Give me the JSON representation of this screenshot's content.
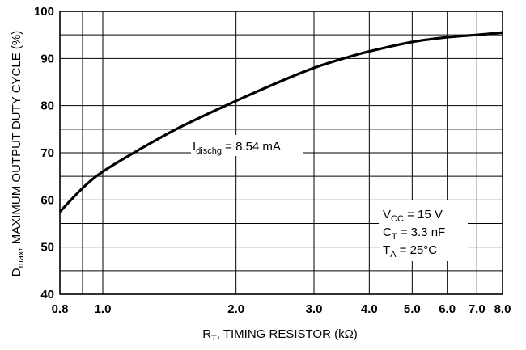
{
  "chart_data": {
    "type": "line",
    "x_scale": "log",
    "x_ticks": [
      {
        "value": 0.8,
        "label": "0.8"
      },
      {
        "value": 1.0,
        "label": "1.0"
      },
      {
        "value": 2.0,
        "label": "2.0"
      },
      {
        "value": 3.0,
        "label": "3.0"
      },
      {
        "value": 4.0,
        "label": "4.0"
      },
      {
        "value": 5.0,
        "label": "5.0"
      },
      {
        "value": 6.0,
        "label": "6.0"
      },
      {
        "value": 7.0,
        "label": "7.0"
      },
      {
        "value": 8.0,
        "label": "8.0"
      }
    ],
    "x_minor_grid": [
      0.9
    ],
    "y_ticks": [
      {
        "value": 40,
        "label": "40"
      },
      {
        "value": 50,
        "label": "50"
      },
      {
        "value": 60,
        "label": "60"
      },
      {
        "value": 70,
        "label": "70"
      },
      {
        "value": 80,
        "label": "80"
      },
      {
        "value": 90,
        "label": "90"
      },
      {
        "value": 100,
        "label": "100"
      }
    ],
    "y_minor_grid": [
      45,
      55,
      65,
      75,
      85,
      95
    ],
    "xlim": [
      0.8,
      8.0
    ],
    "ylim": [
      40,
      100
    ],
    "grid": true,
    "xlabel": {
      "main": "R",
      "sub": "T",
      "rest": ", TIMING RESISTOR (kΩ)"
    },
    "ylabel": {
      "main": "D",
      "sub": "max",
      "rest": ", MAXIMUM OUTPUT DUTY CYCLE (%)"
    },
    "series": [
      {
        "x": [
          0.8,
          0.9,
          1.0,
          1.2,
          1.5,
          2.0,
          2.5,
          3.0,
          3.5,
          4.0,
          5.0,
          6.0,
          7.0,
          8.0
        ],
        "y": [
          57.5,
          62.5,
          66,
          70.5,
          75.5,
          81,
          85,
          88,
          90,
          91.5,
          93.5,
          94.5,
          95,
          95.5
        ]
      }
    ],
    "annotations": {
      "curve_label": {
        "main": "I",
        "sub": "dischg",
        "rest": " = 8.54 mA"
      },
      "conditions": [
        {
          "main": "V",
          "sub": "CC",
          "rest": " = 15 V"
        },
        {
          "main": "C",
          "sub": "T",
          "rest": " = 3.3 nF"
        },
        {
          "main": "T",
          "sub": "A",
          "rest": " = 25°C"
        }
      ]
    }
  }
}
